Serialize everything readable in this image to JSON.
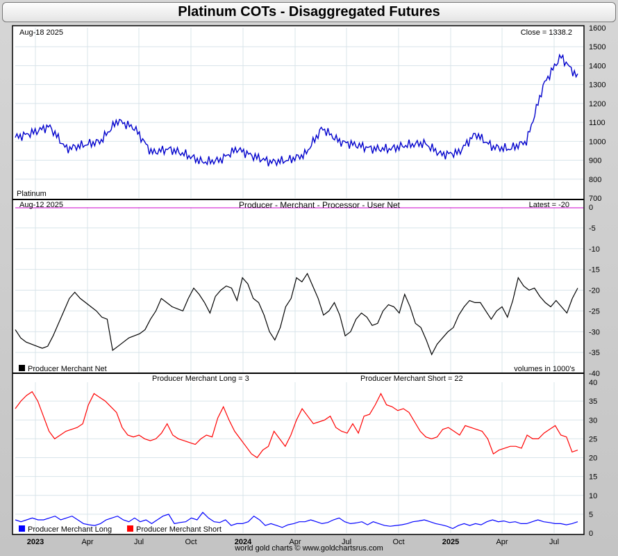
{
  "title": "Platinum COTs - Disaggregated Futures",
  "footer": "world gold charts © www.goldchartsrus.com",
  "colors": {
    "price": "#0000cc",
    "net": "#000000",
    "long": "#0000ff",
    "short": "#ff0000",
    "zero_line": "#cc00cc",
    "grid": "#d8e4ea"
  },
  "chart_data": [
    {
      "type": "line",
      "name": "price-panel",
      "date_label": "Aug-18  2025",
      "close_label": "Close = 1338.2",
      "instrument_label": "Platinum",
      "ylim": [
        700,
        1600
      ],
      "yticks": [
        "700",
        "800",
        "900",
        "1000",
        "1100",
        "1200",
        "1300",
        "1400",
        "1500",
        "1600"
      ],
      "x": [
        "2022-11",
        "2022-12",
        "2023-01",
        "2023-02",
        "2023-03",
        "2023-04",
        "2023-05",
        "2023-06",
        "2023-07",
        "2023-08",
        "2023-09",
        "2023-10",
        "2023-11",
        "2023-12",
        "2024-01",
        "2024-02",
        "2024-03",
        "2024-04",
        "2024-05",
        "2024-06",
        "2024-07",
        "2024-08",
        "2024-09",
        "2024-10",
        "2024-11",
        "2024-12",
        "2025-01",
        "2025-02",
        "2025-03",
        "2025-04",
        "2025-05",
        "2025-06",
        "2025-07",
        "2025-08"
      ],
      "series": [
        {
          "values": [
            1020,
            1045,
            1080,
            960,
            980,
            1000,
            1110,
            1070,
            940,
            960,
            930,
            890,
            900,
            960,
            920,
            890,
            900,
            930,
            1070,
            1000,
            980,
            960,
            960,
            980,
            990,
            930,
            940,
            1040,
            970,
            960,
            1000,
            1300,
            1450,
            1338
          ]
        }
      ]
    },
    {
      "type": "line",
      "name": "net-panel",
      "date_label": "Aug-12  2025",
      "title": "Producer - Merchant - Processor - User Net",
      "latest_label": "Latest = -20",
      "legend": "Producer Merchant Net",
      "units_label": "volumes in 1000's",
      "ylim": [
        -40,
        0
      ],
      "yticks": [
        "0",
        "-5",
        "-10",
        "-15",
        "-20",
        "-25",
        "-30",
        "-35",
        "-40"
      ],
      "series": [
        {
          "name": "Producer Merchant Net",
          "values": [
            -29.5,
            -31.5,
            -32.5,
            -33,
            -33.5,
            -34,
            -33.5,
            -31,
            -28,
            -25,
            -22,
            -20.5,
            -22,
            -23,
            -24,
            -25,
            -26.5,
            -27,
            -34.5,
            -33.5,
            -32.5,
            -31.5,
            -31,
            -30.5,
            -29.5,
            -27,
            -25,
            -22,
            -23,
            -24,
            -24.5,
            -25,
            -22,
            -19.5,
            -21,
            -23,
            -25.5,
            -21.5,
            -20,
            -19,
            -19.5,
            -22.5,
            -17,
            -18.5,
            -22,
            -23,
            -26,
            -30,
            -32,
            -29,
            -24,
            -22,
            -17,
            -18,
            -16,
            -19,
            -22,
            -26,
            -25,
            -23,
            -26,
            -31,
            -30,
            -27,
            -25.5,
            -26.5,
            -28.5,
            -28,
            -25,
            -23.5,
            -24,
            -25.5,
            -21,
            -24,
            -28,
            -29,
            -32,
            -35.5,
            -33,
            -31.5,
            -30,
            -29,
            -26,
            -24,
            -22.5,
            -23,
            -23,
            -25,
            -27,
            -25,
            -24,
            -26.5,
            -22.5,
            -17,
            -19,
            -20,
            -19.5,
            -21.5,
            -23,
            -24,
            -22.5,
            -24,
            -25.5,
            -22,
            -19.5
          ]
        }
      ]
    },
    {
      "type": "line",
      "name": "long-short-panel",
      "long_label": "Producer Merchant Long = 3",
      "short_label": "Producer Merchant Short = 22",
      "ylim": [
        0,
        40
      ],
      "yticks": [
        "0",
        "5",
        "10",
        "15",
        "20",
        "25",
        "30",
        "35",
        "40"
      ],
      "xticks": [
        "2023",
        "Apr",
        "Jul",
        "Oct",
        "2024",
        "Apr",
        "Jul",
        "Oct",
        "2025",
        "Apr",
        "Jul"
      ],
      "xticks_bold": [
        "2023",
        "2024",
        "2025"
      ],
      "series": [
        {
          "name": "Producer Merchant Short",
          "values": [
            33,
            35,
            36.5,
            37.5,
            35,
            31,
            27,
            25,
            26,
            27,
            27.5,
            28,
            29,
            34,
            37,
            36,
            35,
            33.5,
            32,
            28,
            26,
            25.5,
            26,
            25,
            24.5,
            25,
            26.5,
            29,
            26,
            25,
            24.5,
            24,
            23.5,
            25,
            26,
            25.5,
            30.5,
            33.5,
            30,
            27,
            25,
            23,
            21,
            20,
            22,
            23,
            27,
            25,
            23,
            26,
            30,
            33,
            31,
            29,
            29.5,
            30,
            31,
            28,
            27,
            26.5,
            29,
            26.5,
            31,
            31.5,
            34,
            37,
            34,
            33.5,
            32.5,
            33,
            32,
            29.5,
            27,
            25.5,
            25,
            25.5,
            27.5,
            28,
            27,
            26,
            28.5,
            28,
            27.5,
            27,
            25,
            21,
            22,
            22.5,
            23,
            23,
            22.5,
            26,
            25,
            25,
            26.5,
            27.5,
            28.5,
            26,
            25.5,
            21.5,
            22
          ]
        },
        {
          "name": "Producer Merchant Long",
          "values": [
            3.5,
            3,
            3.5,
            4,
            3.5,
            3.5,
            4,
            4.5,
            3.5,
            4,
            4.5,
            3.5,
            2.5,
            2.2,
            2,
            2.5,
            3.5,
            4,
            4.5,
            3.5,
            3,
            4,
            3,
            3.5,
            2.5,
            3.5,
            4.5,
            5,
            2.5,
            2.8,
            3,
            4,
            3.5,
            5.5,
            4,
            3,
            2.8,
            3.5,
            2,
            2.5,
            2.5,
            3,
            4.5,
            3.5,
            2,
            2.5,
            2,
            1.5,
            2.2,
            2.5,
            3,
            3,
            3.5,
            3,
            2.5,
            2.8,
            3.5,
            4,
            3,
            2.5,
            2.7,
            3,
            2.2,
            3,
            2.5,
            2,
            1.8,
            2,
            2.2,
            2.5,
            3,
            3.2,
            3.5,
            3,
            2.5,
            2.2,
            1.8,
            1.2,
            2,
            2.5,
            2,
            2.5,
            2.2,
            3,
            3.5,
            3,
            3.2,
            2.8,
            3,
            2.5,
            2.5,
            3,
            3.5,
            3,
            2.8,
            2.5,
            2.5,
            2.2,
            2.5,
            3
          ]
        }
      ]
    }
  ]
}
